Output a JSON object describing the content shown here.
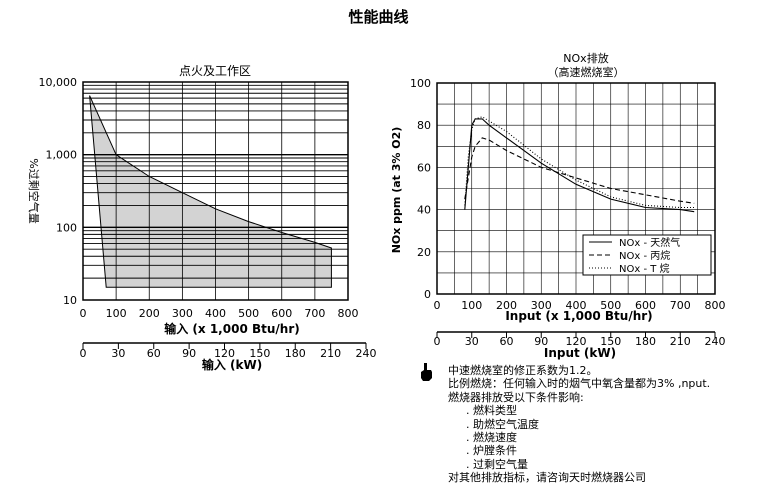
{
  "page_title": "性能曲线",
  "chart_data": [
    {
      "type": "area",
      "title": "点火及工作区",
      "ylabel": "%过剩空气量",
      "y_scale": "log",
      "ylim": [
        10,
        10000
      ],
      "y_ticks": [
        10,
        100,
        1000,
        10000
      ],
      "y_tick_labels": [
        "10",
        "100",
        "1,000",
        "10,000"
      ],
      "x_axis": {
        "label": "输入 (x 1,000 Btu/hr)",
        "range": [
          0,
          800
        ],
        "ticks": [
          0,
          100,
          200,
          300,
          400,
          500,
          600,
          700,
          800
        ]
      },
      "x_axis_secondary": {
        "label": "输入 (kW)",
        "range": [
          0,
          240
        ],
        "ticks": [
          0,
          30,
          60,
          90,
          120,
          150,
          180,
          210,
          240
        ]
      },
      "grid": true,
      "region": {
        "upper": {
          "x": [
            20,
            100,
            200,
            300,
            400,
            500,
            600,
            700,
            750
          ],
          "y": [
            6500,
            1000,
            500,
            300,
            180,
            120,
            85,
            62,
            52
          ]
        },
        "lower": {
          "x": [
            20,
            70,
            750
          ],
          "y": [
            6500,
            15,
            15
          ]
        }
      }
    },
    {
      "type": "line",
      "title": "NOx排放",
      "subtitle": "（高速燃烧室）",
      "ylabel": "NOx ppm (at 3% O2)",
      "ylim": [
        0,
        100
      ],
      "y_ticks": [
        0,
        20,
        40,
        60,
        80,
        100
      ],
      "x_axis": {
        "label": "Input (x 1,000 Btu/hr)",
        "range": [
          0,
          800
        ],
        "ticks": [
          0,
          100,
          200,
          300,
          400,
          500,
          600,
          700,
          800
        ]
      },
      "x_axis_secondary": {
        "label": "Input (kW)",
        "range": [
          0,
          240
        ],
        "ticks": [
          0,
          30,
          60,
          90,
          120,
          150,
          180,
          210,
          240
        ]
      },
      "grid": true,
      "legend_position": "bottom-right",
      "x": [
        80,
        90,
        100,
        110,
        130,
        150,
        200,
        300,
        400,
        500,
        600,
        700,
        740
      ],
      "series": [
        {
          "name": "NOx - 天然气",
          "style": "solid",
          "values": [
            40,
            60,
            80,
            83,
            83,
            80,
            74,
            62,
            52,
            45,
            41,
            40,
            39
          ]
        },
        {
          "name": "NOx - 丙烷",
          "style": "dashed",
          "values": [
            45,
            55,
            65,
            70,
            74,
            73,
            68,
            60,
            55,
            50,
            47,
            44,
            43
          ]
        },
        {
          "name": "NOx - T 烷",
          "style": "dotted",
          "values": [
            42,
            65,
            78,
            83,
            84,
            82,
            77,
            64,
            54,
            46,
            42,
            41,
            41
          ]
        }
      ]
    }
  ],
  "notes": {
    "lines": [
      "中速燃烧室的修正系数为1.2。",
      "比例燃烧：任何输入时的烟气中氧含量都为3% ,nput.",
      "燃烧器排放受以下条件影响:"
    ],
    "factors": [
      ". 燃料类型",
      ". 助燃空气温度",
      ". 燃烧速度",
      ". 炉膛条件",
      ". 过剩空气量"
    ],
    "footer": "对其他排放指标，请咨询天时燃烧器公司"
  }
}
